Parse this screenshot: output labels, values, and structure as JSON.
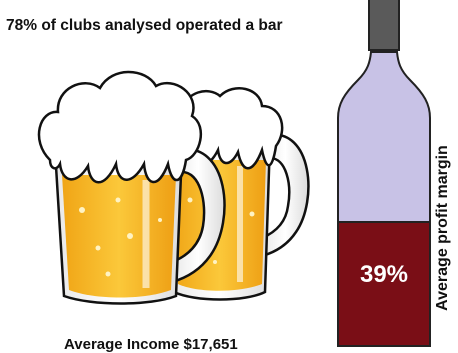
{
  "headline": "78% of clubs analysed operated a bar",
  "income_caption": "Average Income $17,651",
  "profit_margin": {
    "value_text": "39%",
    "value": 39,
    "label": "Average profit margin"
  },
  "colors": {
    "bottle_upper": "#c8c2e6",
    "bottle_fill": "#7a0e16",
    "bottle_neck": "#5a5a5a",
    "beer": "#f5b523",
    "foam": "#ffffff"
  },
  "icons": [
    "beer-mug-icon",
    "wine-bottle-icon"
  ]
}
